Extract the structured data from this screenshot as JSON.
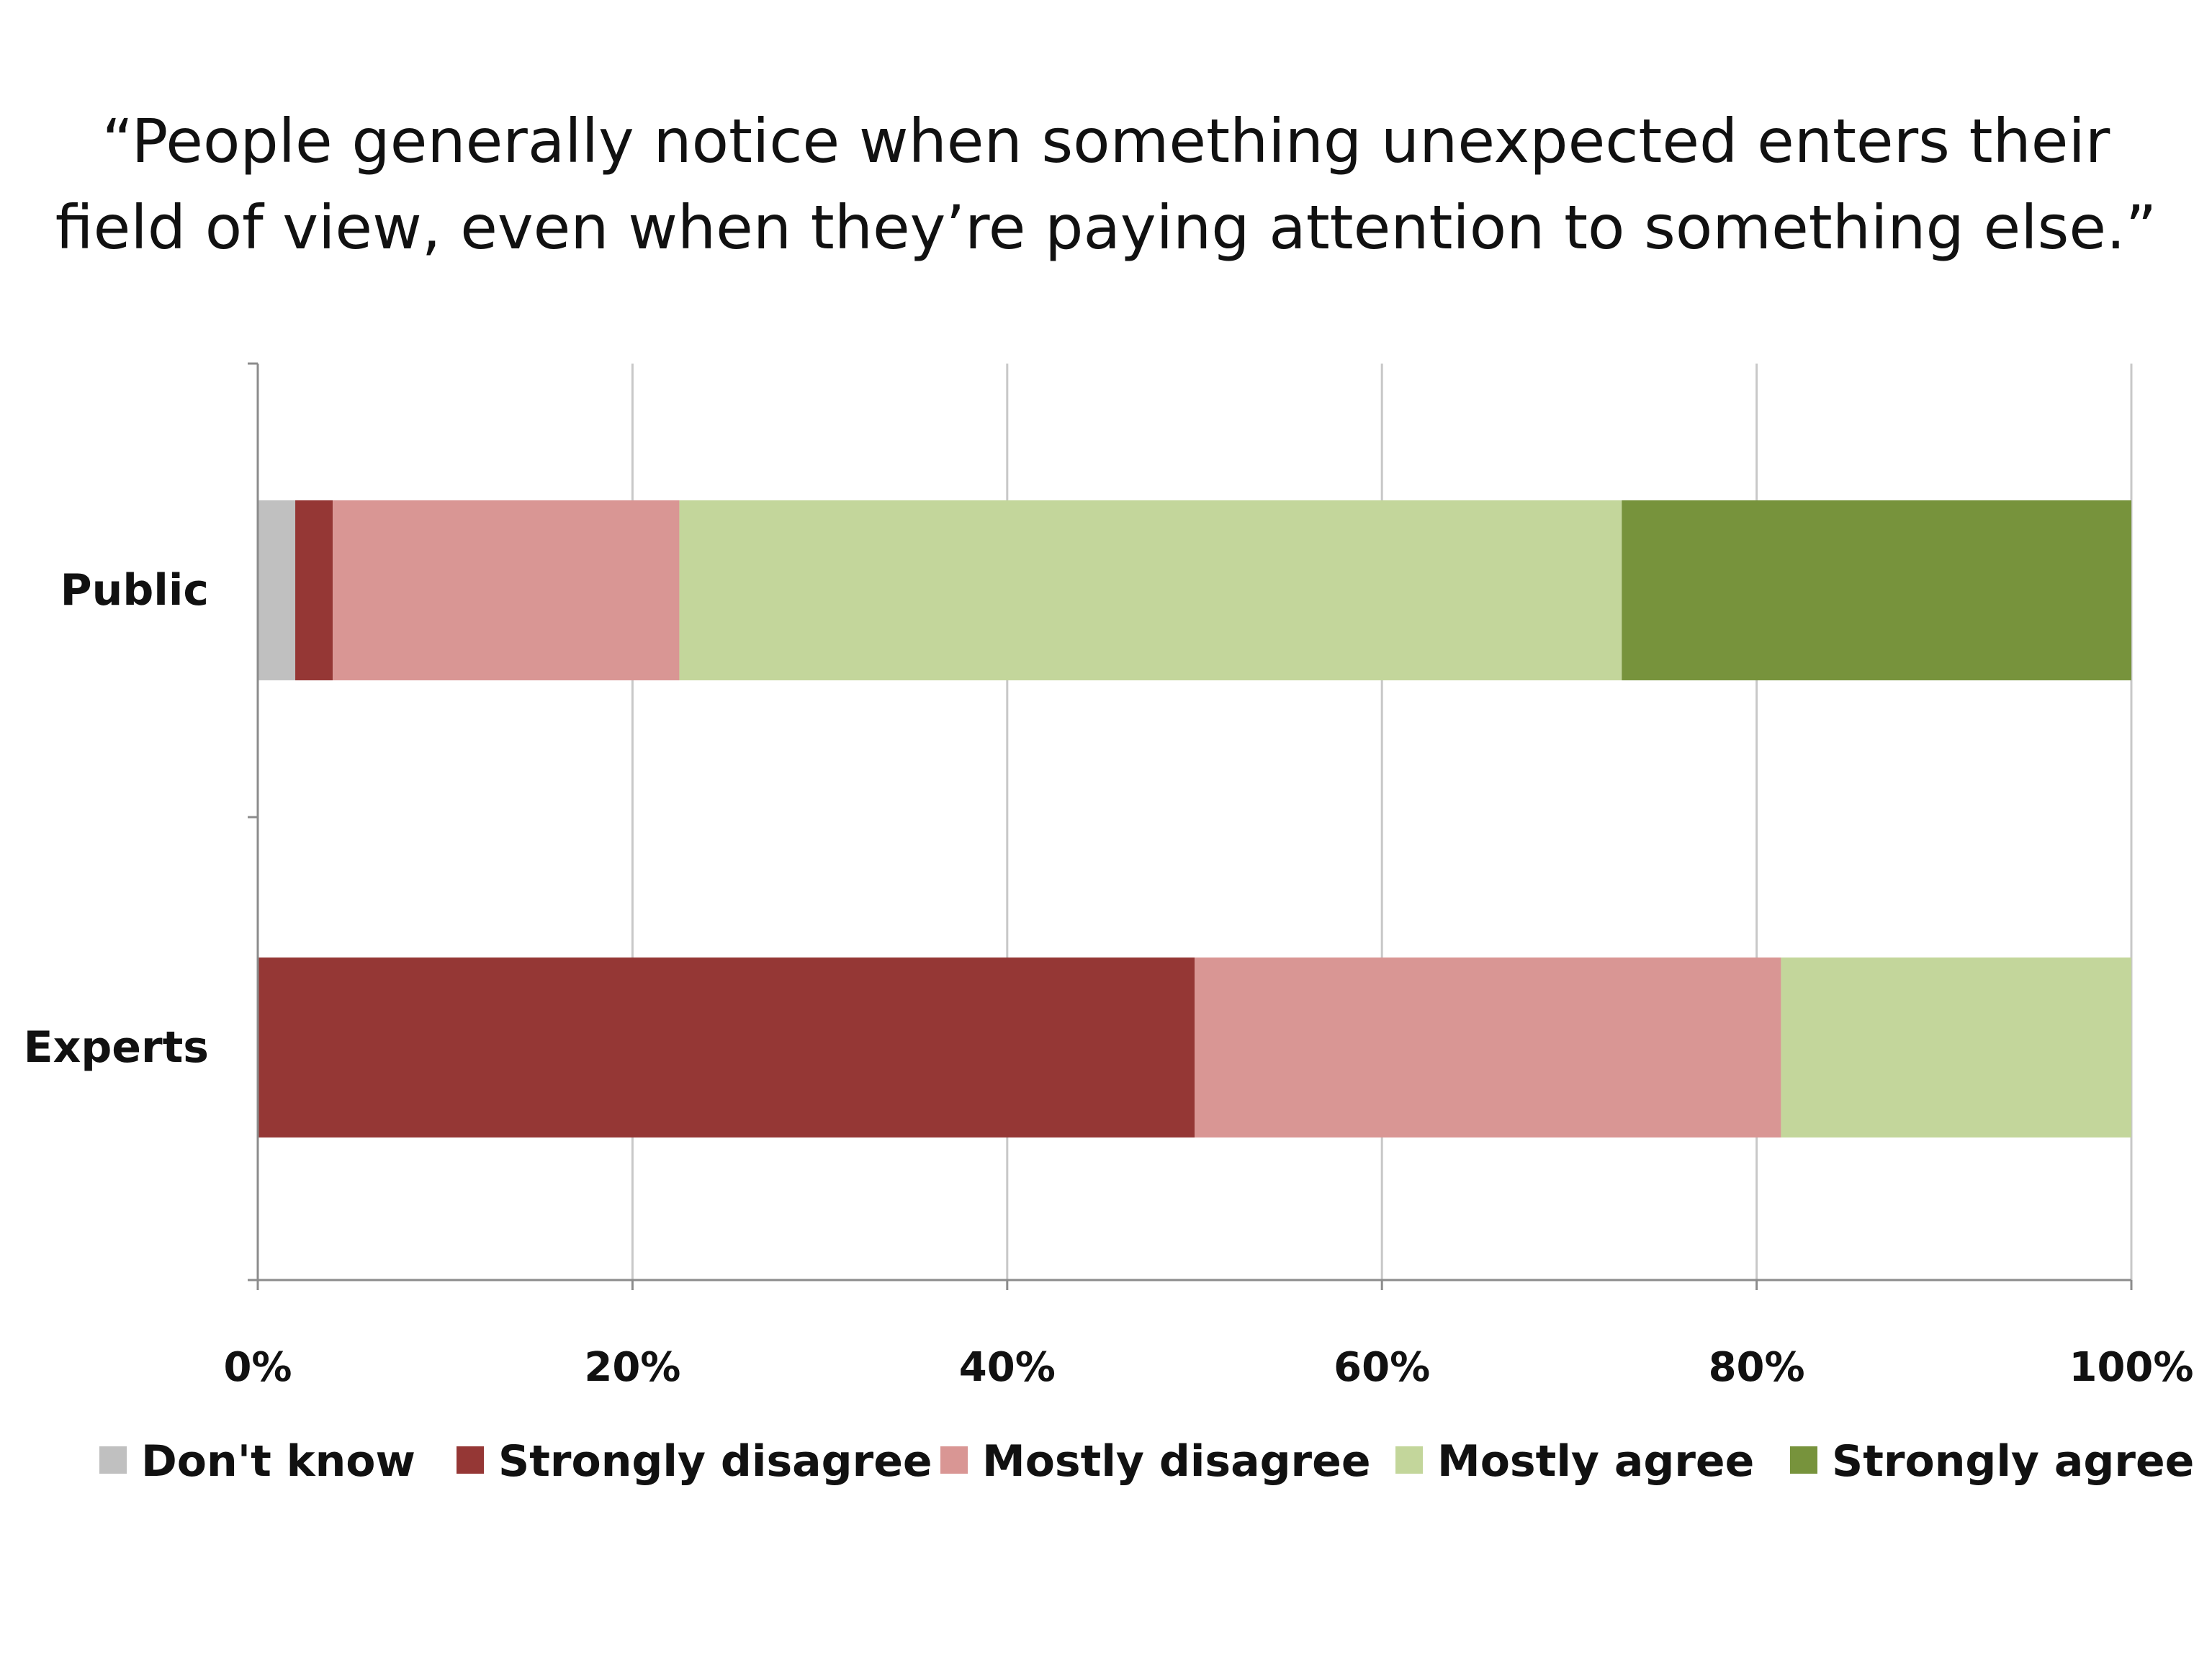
{
  "chart_data": {
    "type": "bar",
    "orientation": "horizontal",
    "stacked": "100%",
    "title_lines": [
      "“People generally notice when something unexpected enters their",
      "field of view, even when they’re paying attention to something else.”"
    ],
    "categories": [
      "Public",
      "Experts"
    ],
    "series": [
      {
        "name": "Don't know",
        "color": "#c0c0c0",
        "values": [
          2,
          0
        ]
      },
      {
        "name": "Strongly disagree",
        "color": "#953735",
        "values": [
          2,
          50
        ]
      },
      {
        "name": "Mostly disagree",
        "color": "#d99694",
        "values": [
          18.5,
          31.3
        ]
      },
      {
        "name": "Mostly agree",
        "color": "#c3d69b",
        "values": [
          50.3,
          18.7
        ]
      },
      {
        "name": "Strongly agree",
        "color": "#77933c",
        "values": [
          27.2,
          0
        ]
      }
    ],
    "x_ticks": [
      "0%",
      "20%",
      "40%",
      "60%",
      "80%",
      "100%"
    ],
    "xlim": [
      0,
      100
    ],
    "xlabel": "",
    "ylabel": "",
    "grid": "vertical",
    "legend_position": "bottom"
  }
}
